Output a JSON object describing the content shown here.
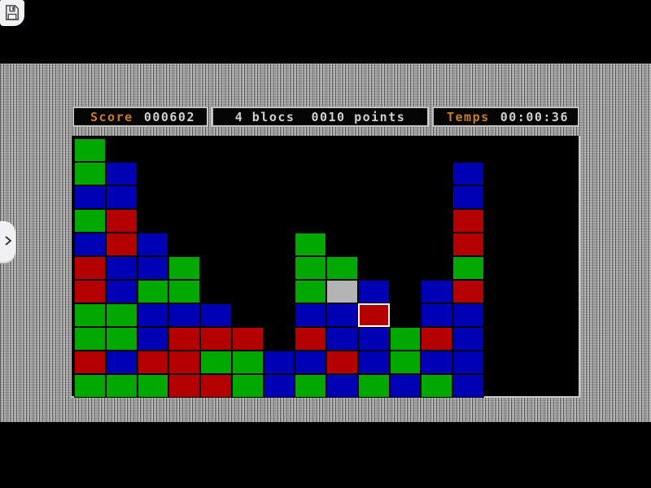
{
  "toolbar": {
    "save_icon": "floppy-disk"
  },
  "drawer": {
    "chevron_icon": "chevron-right"
  },
  "hud": {
    "score": {
      "label": "Score",
      "value": "000602"
    },
    "blocks": {
      "count": "4 blocs",
      "points": "0010 points"
    },
    "time": {
      "label": "Temps",
      "value": "00:00:36"
    },
    "label_color": "#c87d26",
    "value_color": "#d0d0d0",
    "panel_border_color": "#c4c4c4"
  },
  "board": {
    "columns": 16,
    "rows": 11,
    "legend": {
      "G": "#00a800",
      "B": "#0000b4",
      "R": "#b40000",
      "S": "#b4b4b4"
    },
    "legend_names": {
      "G": "green-block",
      "B": "blue-block",
      "R": "red-block",
      "S": "gray-highlighted-block"
    },
    "selected_block": {
      "col": 9,
      "row": 7,
      "color": "R",
      "border_color": "#ffffff"
    },
    "grid": [
      "G...............",
      "GB..........B...",
      "BB..........B...",
      "GR..........R...",
      "BRB....G....R...",
      "RBBG...GG...G...",
      "RBGG...GSB.BR...",
      "GGBBB..BBW.BB...",
      "GGBRRR.RBBGRB...",
      "RBRRGGBBRBGBB...",
      "GGGRRGBGBGBGB..."
    ]
  }
}
